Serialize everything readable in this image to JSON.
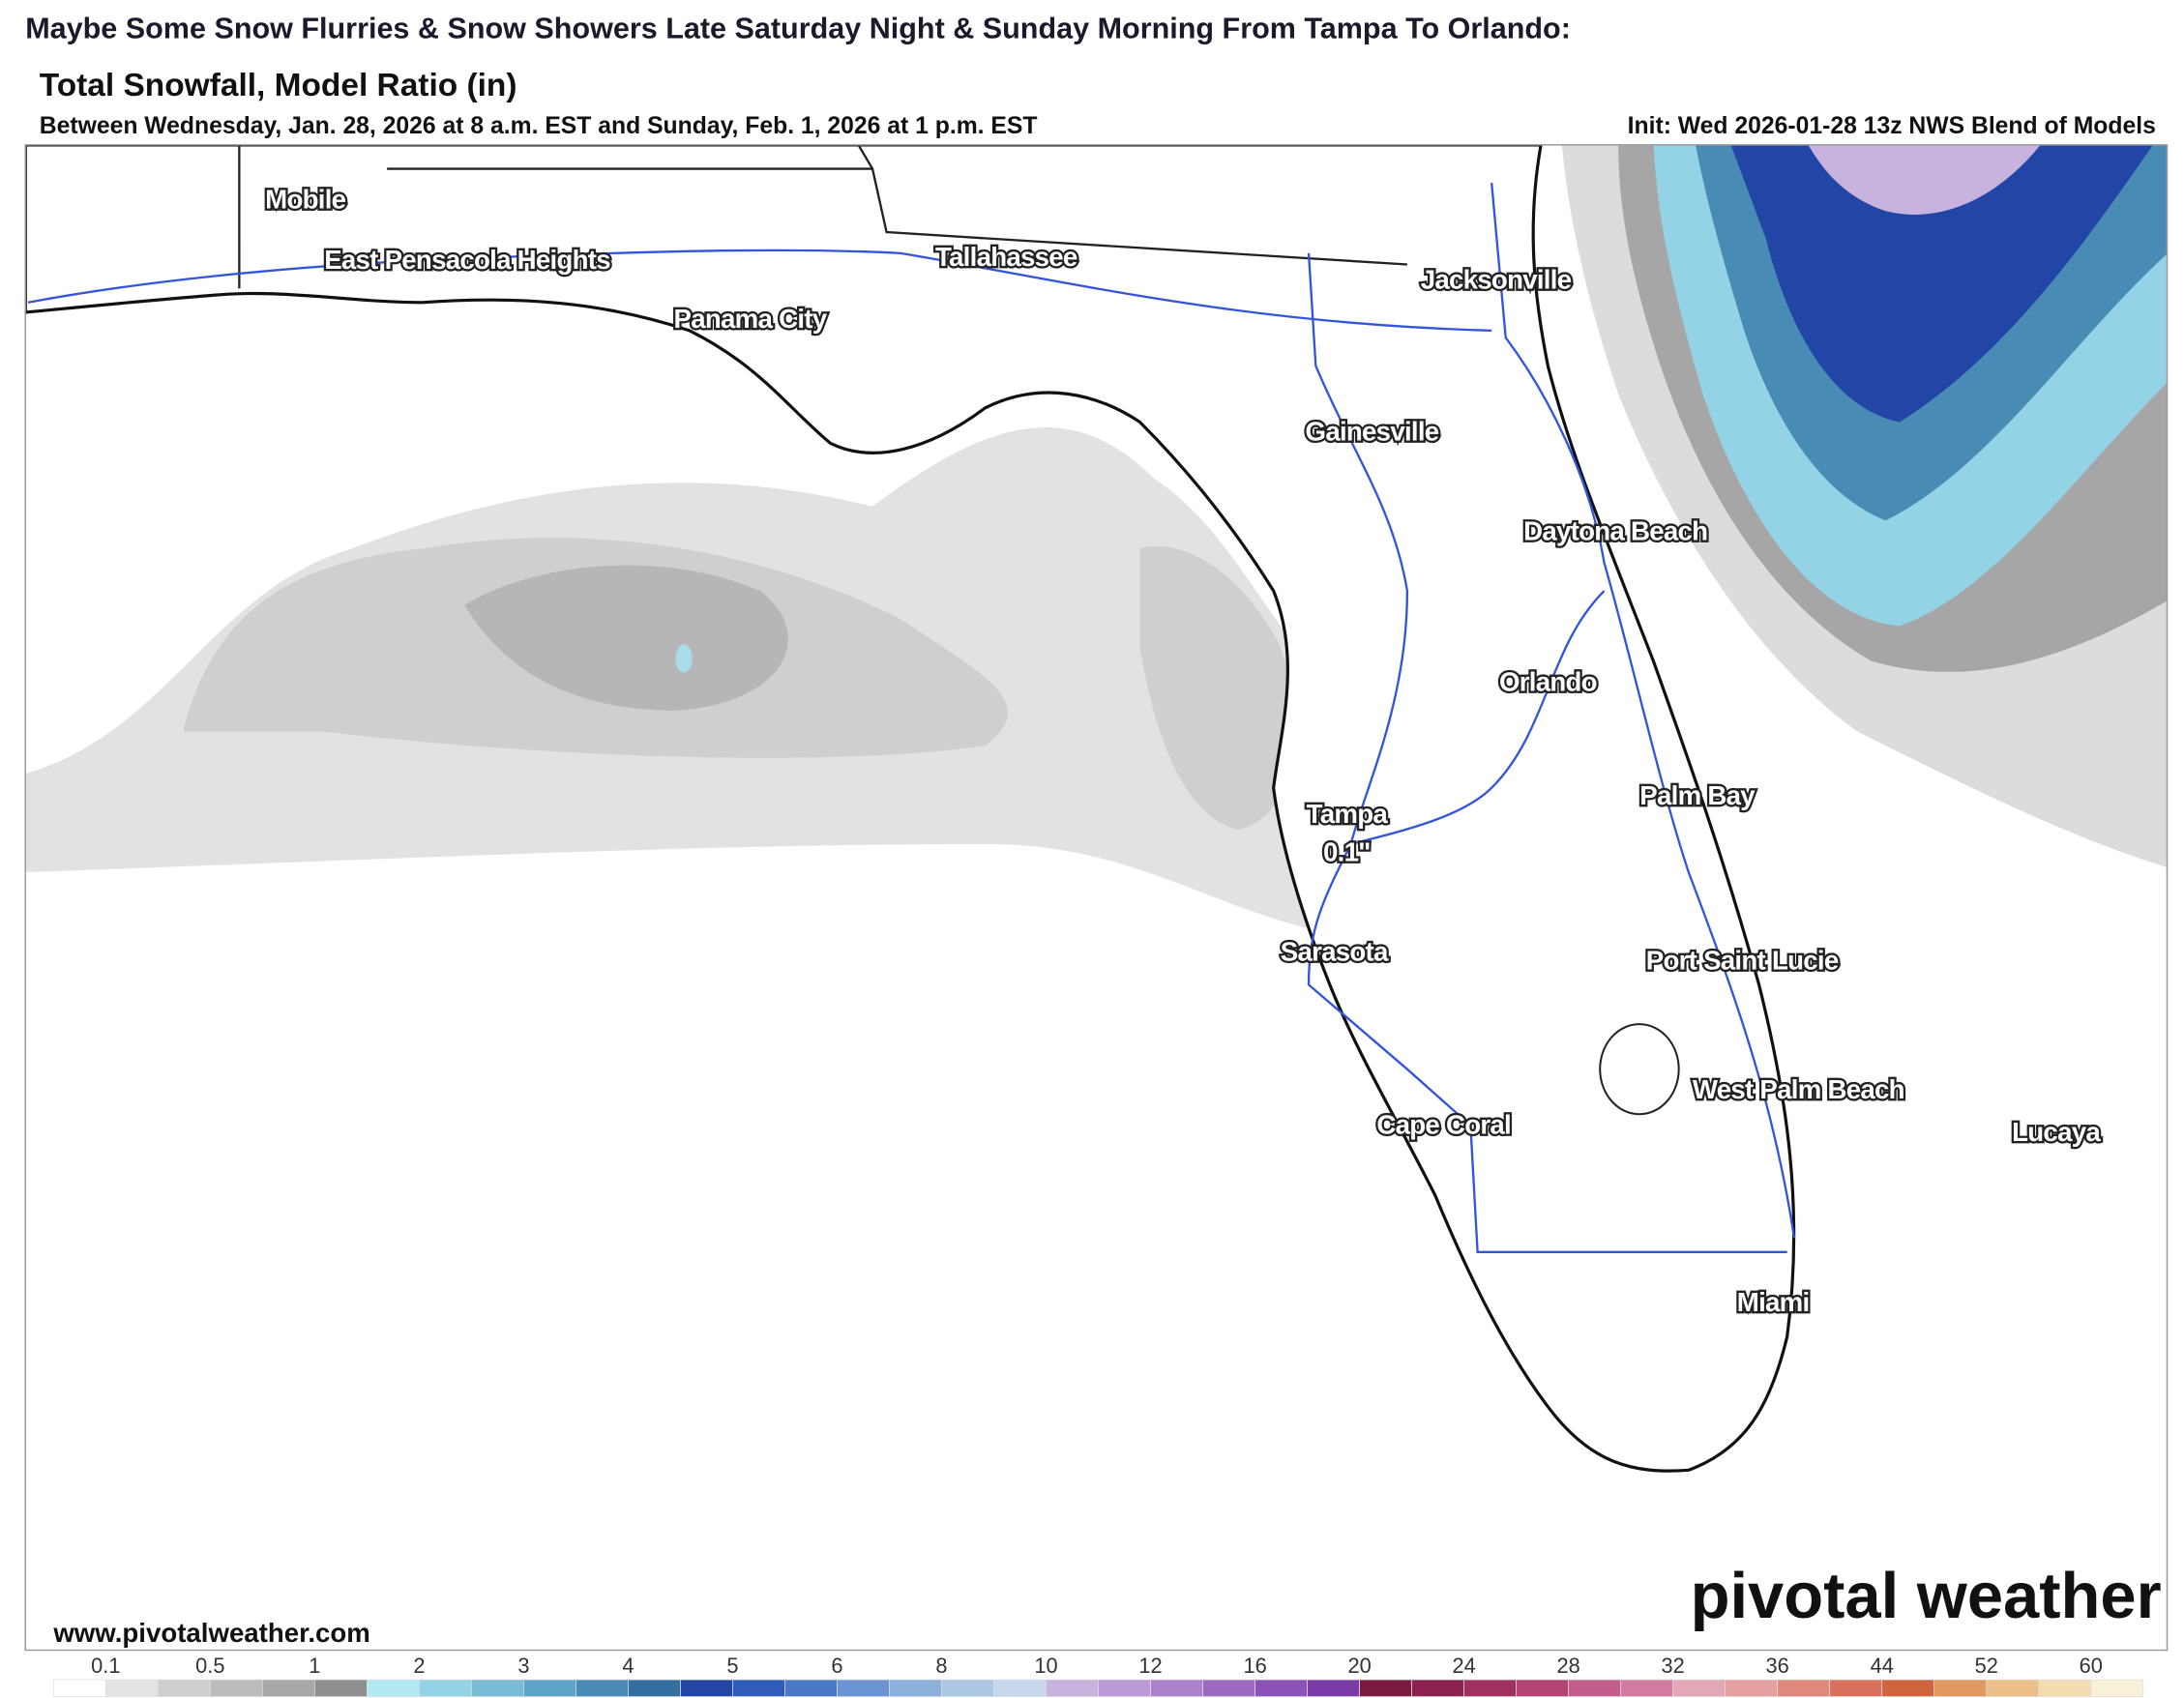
{
  "header": {
    "headline": "Maybe Some Snow Flurries & Snow Showers Late Saturday Night & Sunday Morning From Tampa To Orlando:"
  },
  "map": {
    "title": "Total Snowfall, Model Ratio (in)",
    "subtitle": "Between Wednesday, Jan. 28, 2026 at 8 a.m. EST and Sunday, Feb. 1, 2026 at 1 p.m. EST",
    "init": "Init: Wed 2026-01-28 13z NWS Blend of Models",
    "cities": [
      "Mobile",
      "East Pensacola Heights",
      "Tallahassee",
      "Panama City",
      "Jacksonville",
      "Gainesville",
      "Daytona Beach",
      "Orlando",
      "Palm Bay",
      "Tampa",
      "Sarasota",
      "Port Saint Lucie",
      "West Palm Beach",
      "Cape Coral",
      "Lucaya",
      "Miami"
    ],
    "annotation": "0.1\"",
    "website": "www.pivotalweather.com",
    "brand": "pivotal weather"
  },
  "colorbar": {
    "labels": [
      "0.1",
      "0.5",
      "1",
      "2",
      "3",
      "4",
      "5",
      "6",
      "8",
      "10",
      "12",
      "16",
      "20",
      "24",
      "28",
      "32",
      "36",
      "44",
      "52",
      "60"
    ],
    "colors": [
      "#ffffff",
      "#e4e4e4",
      "#cfcfcf",
      "#bcbcbc",
      "#a8a8a8",
      "#8e8e8e",
      "#b2e8f2",
      "#94d2e6",
      "#78bcd6",
      "#5ea4c6",
      "#488cb6",
      "#336fa0",
      "#2346a6",
      "#2f5cb8",
      "#4a78c8",
      "#6a94d4",
      "#8cb0dc",
      "#acc6e4",
      "#c8d8ec",
      "#c8b2de",
      "#bc9ad6",
      "#ac82cc",
      "#9c6ac2",
      "#8c52b8",
      "#7a3aa8",
      "#7a1a40",
      "#8c2250",
      "#a03060",
      "#b44474",
      "#c45c8c",
      "#d27aa0",
      "#e2a8b8",
      "#e6a0a0",
      "#e0887c",
      "#d8705c",
      "#d0643c",
      "#e09a60",
      "#ecc088",
      "#f2dcb0",
      "#f8f0d8"
    ]
  }
}
